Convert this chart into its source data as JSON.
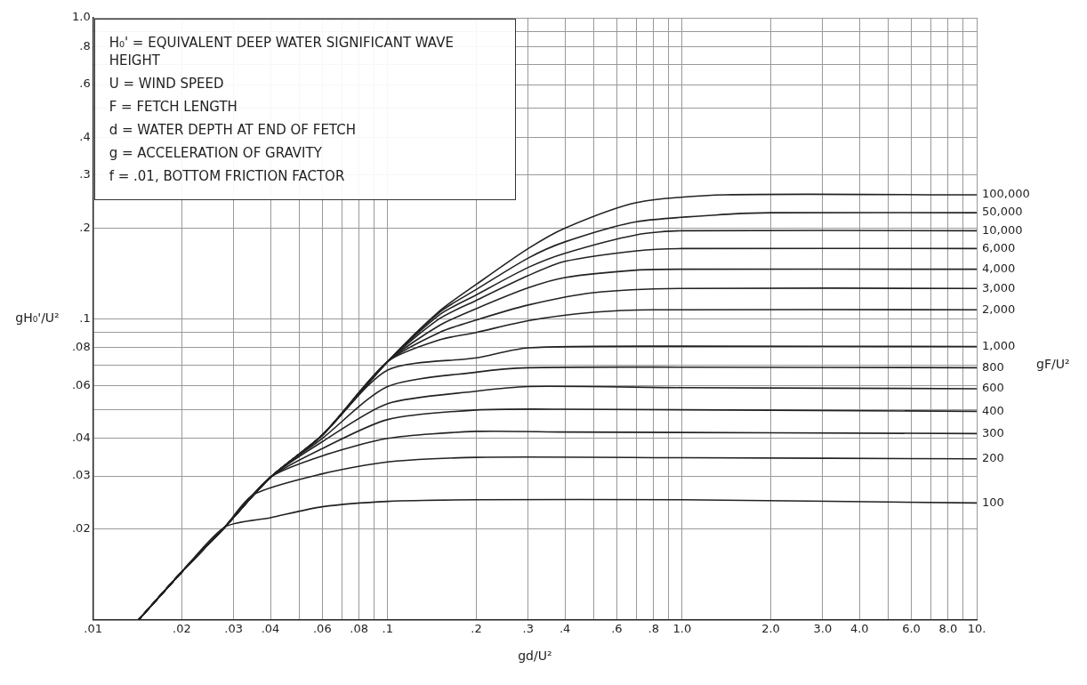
{
  "chart_data": {
    "type": "line",
    "xlabel": "gd/U²",
    "ylabel": "gH₀'/U²",
    "legend_title": "gF/U²",
    "log": "xy",
    "grid": true,
    "legend": false,
    "marker": "none",
    "line_style": "solid",
    "xlim": [
      0.01,
      10
    ],
    "ylim": [
      0.01,
      1
    ],
    "xticks": [
      {
        "value": 0.01,
        "label": ".01"
      },
      {
        "value": 0.02,
        "label": ".02"
      },
      {
        "value": 0.03,
        "label": ".03"
      },
      {
        "value": 0.04,
        "label": ".04"
      },
      {
        "value": 0.05,
        "label": null
      },
      {
        "value": 0.06,
        "label": ".06"
      },
      {
        "value": 0.07,
        "label": null
      },
      {
        "value": 0.08,
        "label": ".08"
      },
      {
        "value": 0.09,
        "label": null
      },
      {
        "value": 0.1,
        "label": ".1"
      },
      {
        "value": 0.2,
        "label": ".2"
      },
      {
        "value": 0.3,
        "label": ".3"
      },
      {
        "value": 0.4,
        "label": ".4"
      },
      {
        "value": 0.5,
        "label": null
      },
      {
        "value": 0.6,
        "label": ".6"
      },
      {
        "value": 0.7,
        "label": null
      },
      {
        "value": 0.8,
        "label": ".8"
      },
      {
        "value": 0.9,
        "label": null
      },
      {
        "value": 1,
        "label": "1.0"
      },
      {
        "value": 2,
        "label": "2.0"
      },
      {
        "value": 3,
        "label": "3.0"
      },
      {
        "value": 4,
        "label": "4.0"
      },
      {
        "value": 5,
        "label": null
      },
      {
        "value": 6,
        "label": "6.0"
      },
      {
        "value": 7,
        "label": null
      },
      {
        "value": 8,
        "label": "8.0"
      },
      {
        "value": 9,
        "label": null
      },
      {
        "value": 10,
        "label": "10."
      }
    ],
    "yticks": [
      {
        "value": 0.01,
        "label": null
      },
      {
        "value": 0.02,
        "label": ".02"
      },
      {
        "value": 0.03,
        "label": ".03"
      },
      {
        "value": 0.04,
        "label": ".04"
      },
      {
        "value": 0.05,
        "label": null
      },
      {
        "value": 0.06,
        "label": ".06"
      },
      {
        "value": 0.07,
        "label": null
      },
      {
        "value": 0.08,
        "label": ".08"
      },
      {
        "value": 0.09,
        "label": null
      },
      {
        "value": 0.1,
        "label": ".1"
      },
      {
        "value": 0.2,
        "label": ".2"
      },
      {
        "value": 0.3,
        "label": ".3"
      },
      {
        "value": 0.4,
        "label": ".4"
      },
      {
        "value": 0.5,
        "label": null
      },
      {
        "value": 0.6,
        "label": ".6"
      },
      {
        "value": 0.7,
        "label": null
      },
      {
        "value": 0.8,
        "label": ".8"
      },
      {
        "value": 0.9,
        "label": null
      },
      {
        "value": 1,
        "label": "1.0"
      }
    ],
    "annotations": [
      "H₀' = EQUIVALENT DEEP WATER SIGNIFICANT WAVE HEIGHT",
      "U = WIND SPEED",
      "F = FETCH LENGTH",
      "d = WATER DEPTH AT END OF FETCH",
      "g = ACCELERATION OF GRAVITY",
      "f = .01, BOTTOM FRICTION FACTOR"
    ],
    "series": [
      {
        "name": "100",
        "color": "#222222",
        "x": [
          0.0143,
          0.02,
          0.028,
          0.04,
          0.06,
          0.1,
          0.2,
          1,
          10
        ],
        "values": [
          0.01,
          0.0144,
          0.0203,
          0.0218,
          0.0237,
          0.0247,
          0.025,
          0.025,
          0.0244
        ]
      },
      {
        "name": "200",
        "color": "#222222",
        "x": [
          0.0143,
          0.02,
          0.028,
          0.035,
          0.06,
          0.1,
          0.2,
          1,
          10
        ],
        "values": [
          0.01,
          0.0144,
          0.0203,
          0.026,
          0.0305,
          0.0334,
          0.0346,
          0.0345,
          0.0342
        ]
      },
      {
        "name": "300",
        "color": "#222222",
        "x": [
          0.0143,
          0.02,
          0.028,
          0.04,
          0.06,
          0.1,
          0.2,
          0.4,
          10
        ],
        "values": [
          0.01,
          0.0144,
          0.0203,
          0.0297,
          0.035,
          0.04,
          0.0422,
          0.042,
          0.0415
        ]
      },
      {
        "name": "400",
        "color": "#222222",
        "x": [
          0.0143,
          0.02,
          0.028,
          0.04,
          0.06,
          0.1,
          0.2,
          0.4,
          10
        ],
        "values": [
          0.01,
          0.0144,
          0.0203,
          0.0297,
          0.037,
          0.0462,
          0.0497,
          0.05,
          0.0492
        ]
      },
      {
        "name": "600",
        "color": "#222222",
        "x": [
          0.0143,
          0.02,
          0.028,
          0.04,
          0.06,
          0.1,
          0.2,
          0.3,
          1,
          10
        ],
        "values": [
          0.01,
          0.0144,
          0.0203,
          0.0297,
          0.039,
          0.0522,
          0.0574,
          0.0595,
          0.059,
          0.0585
        ]
      },
      {
        "name": "800",
        "color": "#222222",
        "x": [
          0.0143,
          0.02,
          0.028,
          0.04,
          0.06,
          0.1,
          0.2,
          0.3,
          1,
          10
        ],
        "values": [
          0.01,
          0.0144,
          0.0203,
          0.0297,
          0.04,
          0.0595,
          0.0664,
          0.0687,
          0.069,
          0.0687
        ]
      },
      {
        "name": "1,000",
        "color": "#222222",
        "x": [
          0.0143,
          0.02,
          0.028,
          0.04,
          0.06,
          0.1,
          0.2,
          0.3,
          1,
          10
        ],
        "values": [
          0.01,
          0.0144,
          0.0203,
          0.0297,
          0.041,
          0.0675,
          0.0741,
          0.08,
          0.081,
          0.0808
        ]
      },
      {
        "name": "2,000",
        "color": "#222222",
        "x": [
          0.0143,
          0.02,
          0.028,
          0.04,
          0.06,
          0.1,
          0.15,
          0.2,
          0.3,
          0.5,
          0.8,
          10
        ],
        "values": [
          0.01,
          0.0144,
          0.0203,
          0.0297,
          0.041,
          0.072,
          0.085,
          0.09,
          0.0985,
          0.105,
          0.107,
          0.107
        ]
      },
      {
        "name": "3,000",
        "color": "#222222",
        "x": [
          0.0143,
          0.02,
          0.028,
          0.04,
          0.06,
          0.1,
          0.15,
          0.2,
          0.3,
          0.5,
          1,
          10
        ],
        "values": [
          0.01,
          0.0144,
          0.0203,
          0.0297,
          0.041,
          0.072,
          0.09,
          0.099,
          0.111,
          0.122,
          0.126,
          0.126
        ]
      },
      {
        "name": "4,000",
        "color": "#222222",
        "x": [
          0.0143,
          0.02,
          0.028,
          0.04,
          0.06,
          0.1,
          0.15,
          0.2,
          0.3,
          0.4,
          0.7,
          1,
          10
        ],
        "values": [
          0.01,
          0.0144,
          0.0203,
          0.0297,
          0.041,
          0.072,
          0.095,
          0.108,
          0.1266,
          0.137,
          0.145,
          0.146,
          0.146
        ]
      },
      {
        "name": "6,000",
        "color": "#222222",
        "x": [
          0.0143,
          0.02,
          0.028,
          0.04,
          0.06,
          0.1,
          0.15,
          0.2,
          0.3,
          0.4,
          0.7,
          1,
          10
        ],
        "values": [
          0.01,
          0.0144,
          0.0203,
          0.0297,
          0.041,
          0.072,
          0.1,
          0.115,
          0.139,
          0.155,
          0.168,
          0.171,
          0.171
        ]
      },
      {
        "name": "10,000",
        "color": "#222222",
        "x": [
          0.0143,
          0.02,
          0.028,
          0.04,
          0.06,
          0.1,
          0.15,
          0.2,
          0.3,
          0.4,
          0.7,
          1,
          10
        ],
        "values": [
          0.01,
          0.0144,
          0.0203,
          0.0297,
          0.041,
          0.072,
          0.103,
          0.12,
          0.148,
          0.165,
          0.19,
          0.196,
          0.196
        ]
      },
      {
        "name": "50,000",
        "color": "#222222",
        "x": [
          0.0143,
          0.02,
          0.028,
          0.04,
          0.06,
          0.1,
          0.15,
          0.2,
          0.3,
          0.4,
          0.7,
          1.5,
          2,
          10
        ],
        "values": [
          0.01,
          0.0144,
          0.0203,
          0.0297,
          0.041,
          0.072,
          0.105,
          0.125,
          0.159,
          0.18,
          0.21,
          0.223,
          0.225,
          0.225
        ]
      },
      {
        "name": "100,000",
        "color": "#222222",
        "x": [
          0.0143,
          0.02,
          0.028,
          0.04,
          0.06,
          0.1,
          0.15,
          0.2,
          0.3,
          0.4,
          0.7,
          1.4,
          10
        ],
        "values": [
          0.01,
          0.0144,
          0.0203,
          0.0297,
          0.041,
          0.072,
          0.106,
          0.13,
          0.171,
          0.2,
          0.243,
          0.258,
          0.258
        ]
      }
    ]
  }
}
